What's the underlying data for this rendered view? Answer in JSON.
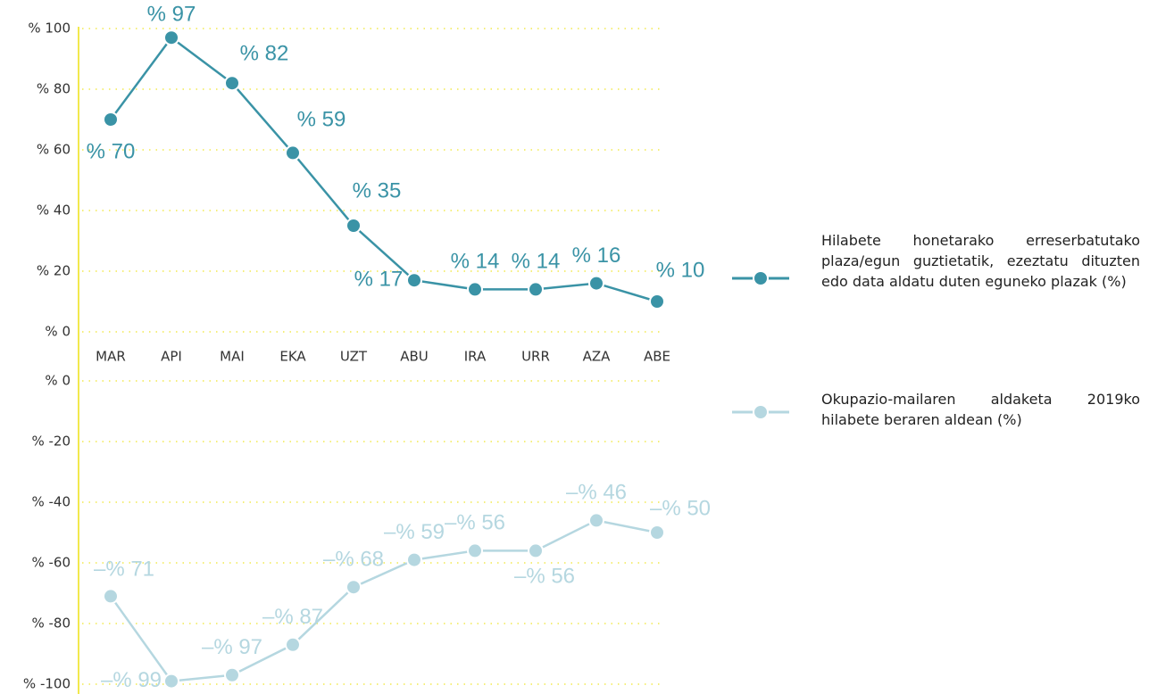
{
  "chart_data": [
    {
      "type": "line",
      "categories": [
        "MAR",
        "API",
        "MAI",
        "EKA",
        "UZT",
        "ABU",
        "IRA",
        "URR",
        "AZA",
        "ABE"
      ],
      "ylim": [
        0,
        100
      ],
      "yticks": [
        {
          "value": 0,
          "label": "% 0"
        },
        {
          "value": 20,
          "label": "% 20"
        },
        {
          "value": 40,
          "label": "% 40"
        },
        {
          "value": 60,
          "label": "% 60"
        },
        {
          "value": 80,
          "label": "% 80"
        },
        {
          "value": 100,
          "label": "% 100"
        }
      ],
      "grid": true,
      "series": [
        {
          "name": "Hilabete honetarako erreserbatutako plaza/egun guztietatik, ezeztatu dituzten edo data aldatu duten eguneko plazak (%)",
          "color": "#3a93a6",
          "values": [
            70,
            97,
            82,
            59,
            35,
            17,
            14,
            14,
            16,
            10
          ],
          "value_labels": [
            "% 70",
            "% 97",
            "% 82",
            "% 59",
            "% 35",
            "% 17",
            "% 14",
            "% 14",
            "% 16",
            "% 10"
          ]
        }
      ]
    },
    {
      "type": "line",
      "ylim": [
        -100,
        0
      ],
      "yticks": [
        {
          "value": 0,
          "label": "% 0"
        },
        {
          "value": -20,
          "label": "% -20"
        },
        {
          "value": -40,
          "label": "% -40"
        },
        {
          "value": -60,
          "label": "% -60"
        },
        {
          "value": -80,
          "label": "% -80"
        },
        {
          "value": -100,
          "label": "% -100"
        }
      ],
      "grid": true,
      "series": [
        {
          "name": "Okupazio-mailaren aldaketa 2019ko hilabete beraren aldean (%)",
          "color": "#b5d7e0",
          "values": [
            -71,
            -99,
            -97,
            -87,
            -68,
            -59,
            -56,
            -56,
            -46,
            -50
          ],
          "value_labels": [
            "–% 71",
            "–% 99",
            "–% 97",
            "–% 87",
            "–% 68",
            "–% 59",
            "–% 56",
            "–% 56",
            "–% 46",
            "–% 50"
          ]
        }
      ]
    }
  ]
}
